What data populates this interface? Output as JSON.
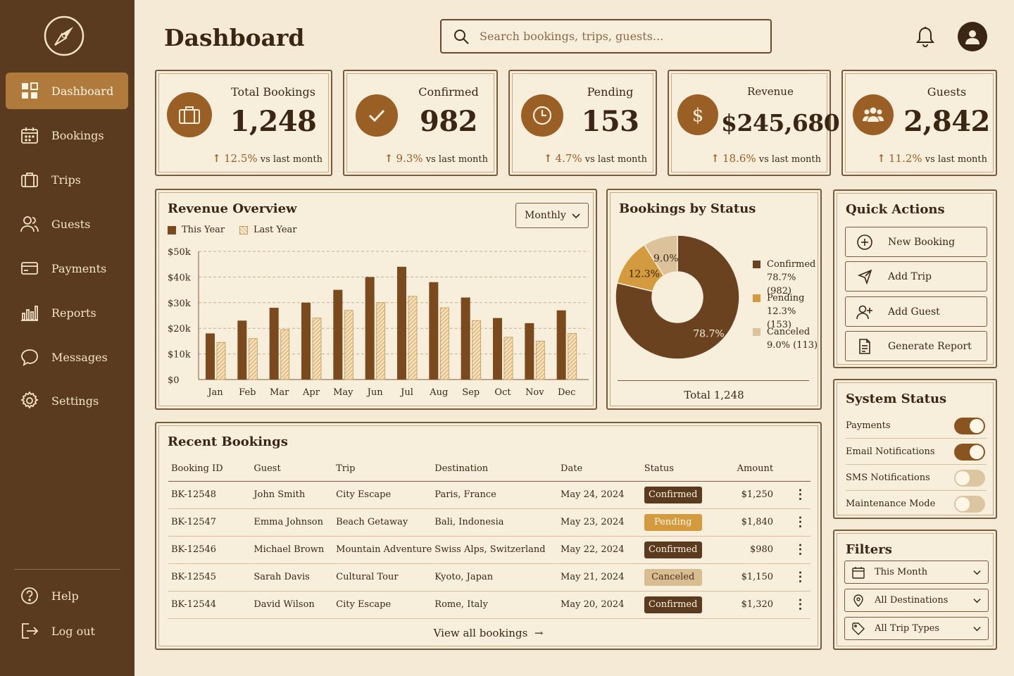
{
  "sidebar": {
    "items": [
      {
        "label": "Dashboard",
        "icon": "grid-icon",
        "active": true
      },
      {
        "label": "Bookings",
        "icon": "calendar-icon"
      },
      {
        "label": "Trips",
        "icon": "suitcase-icon"
      },
      {
        "label": "Guests",
        "icon": "users-icon"
      },
      {
        "label": "Payments",
        "icon": "credit-card-icon"
      },
      {
        "label": "Reports",
        "icon": "bar-chart-icon"
      },
      {
        "label": "Messages",
        "icon": "chat-bubble-icon"
      },
      {
        "label": "Settings",
        "icon": "gear-icon"
      }
    ],
    "bottom": [
      {
        "label": "Help",
        "icon": "help-icon"
      },
      {
        "label": "Log out",
        "icon": "logout-icon"
      }
    ]
  },
  "header": {
    "title": "Dashboard",
    "search_placeholder": "Search bookings, trips, guests..."
  },
  "stats": [
    {
      "label": "Total Bookings",
      "value": "1,248",
      "change": "12.5%",
      "suffix": "vs last month",
      "icon": "suitcase-icon"
    },
    {
      "label": "Confirmed",
      "value": "982",
      "change": "9.3%",
      "suffix": "vs last month",
      "icon": "check-icon"
    },
    {
      "label": "Pending",
      "value": "153",
      "change": "4.7%",
      "suffix": "vs last month",
      "icon": "clock-icon"
    },
    {
      "label": "Revenue",
      "value": "$245,680",
      "change": "18.6%",
      "suffix": "vs last month",
      "icon": "dollar-icon"
    },
    {
      "label": "Guests",
      "value": "2,842",
      "change": "11.2%",
      "suffix": "vs last month",
      "icon": "group-icon"
    }
  ],
  "revenue": {
    "title": "Revenue Overview",
    "period": "Monthly",
    "legend": {
      "this_year": "This Year",
      "last_year": "Last Year"
    }
  },
  "status": {
    "title": "Bookings by Status",
    "total": "Total 1,248",
    "legend": [
      {
        "name": "Confirmed",
        "detail": "78.7% (982)"
      },
      {
        "name": "Pending",
        "detail": "12.3% (153)"
      },
      {
        "name": "Canceled",
        "detail": "9.0% (113)"
      }
    ]
  },
  "chart_data": [
    {
      "type": "bar",
      "title": "Revenue Overview",
      "categories": [
        "Jan",
        "Feb",
        "Mar",
        "Apr",
        "May",
        "Jun",
        "Jul",
        "Aug",
        "Sep",
        "Oct",
        "Nov",
        "Dec"
      ],
      "series": [
        {
          "name": "This Year",
          "values": [
            18,
            23,
            28,
            30,
            35,
            40,
            44,
            38,
            32,
            24,
            22,
            27
          ]
        },
        {
          "name": "Last Year",
          "values": [
            14.5,
            16,
            19.5,
            24,
            27,
            30,
            32.5,
            28,
            23,
            16.5,
            15,
            18
          ]
        }
      ],
      "y_ticks": [
        "$0",
        "$10k",
        "$20k",
        "$30k",
        "$40k",
        "$50k"
      ],
      "ylim": [
        0,
        50
      ],
      "colors": {
        "this_year": "#7a4a1e",
        "last_year": "#e6c794"
      }
    },
    {
      "type": "pie",
      "title": "Bookings by Status",
      "labels": [
        "Confirmed",
        "Pending",
        "Canceled"
      ],
      "values": [
        78.7,
        12.3,
        9.0
      ],
      "slice_labels": [
        "78.7%",
        "12.3%",
        "9.0%"
      ],
      "colors": [
        "#6b4220",
        "#d49a3e",
        "#dcc29a"
      ]
    }
  ],
  "quick_actions": {
    "title": "Quick Actions",
    "items": [
      {
        "label": "New Booking",
        "icon": "plus-circle-icon"
      },
      {
        "label": "Add Trip",
        "icon": "plane-icon"
      },
      {
        "label": "Add Guest",
        "icon": "add-user-icon"
      },
      {
        "label": "Generate Report",
        "icon": "document-icon"
      }
    ]
  },
  "system_status": {
    "title": "System Status",
    "items": [
      {
        "label": "Payments",
        "on": true
      },
      {
        "label": "Email Notifications",
        "on": true
      },
      {
        "label": "SMS Notifications",
        "on": false
      },
      {
        "label": "Maintenance Mode",
        "on": false
      }
    ]
  },
  "filters": {
    "title": "Filters",
    "items": [
      {
        "label": "This Month",
        "icon": "calendar-icon"
      },
      {
        "label": "All Destinations",
        "icon": "map-pin-icon"
      },
      {
        "label": "All Trip Types",
        "icon": "tag-icon"
      }
    ]
  },
  "bookings": {
    "title": "Recent Bookings",
    "columns": [
      "Booking ID",
      "Guest",
      "Trip",
      "Destination",
      "Date",
      "Status",
      "Amount"
    ],
    "rows": [
      {
        "id": "BK-12548",
        "guest": "John Smith",
        "trip": "City Escape",
        "destination": "Paris, France",
        "date": "May 24, 2024",
        "status": "Confirmed",
        "amount": "$1,250"
      },
      {
        "id": "BK-12547",
        "guest": "Emma Johnson",
        "trip": "Beach Getaway",
        "destination": "Bali, Indonesia",
        "date": "May 23, 2024",
        "status": "Pending",
        "amount": "$1,840"
      },
      {
        "id": "BK-12546",
        "guest": "Michael Brown",
        "trip": "Mountain Adventure",
        "destination": "Swiss Alps, Switzerland",
        "date": "May 22, 2024",
        "status": "Confirmed",
        "amount": "$980"
      },
      {
        "id": "BK-12545",
        "guest": "Sarah Davis",
        "trip": "Cultural Tour",
        "destination": "Kyoto, Japan",
        "date": "May 21, 2024",
        "status": "Canceled",
        "amount": "$1,150"
      },
      {
        "id": "BK-12544",
        "guest": "David Wilson",
        "trip": "City Escape",
        "destination": "Rome, Italy",
        "date": "May 20, 2024",
        "status": "Confirmed",
        "amount": "$1,320"
      }
    ],
    "view_all": "View all bookings"
  }
}
